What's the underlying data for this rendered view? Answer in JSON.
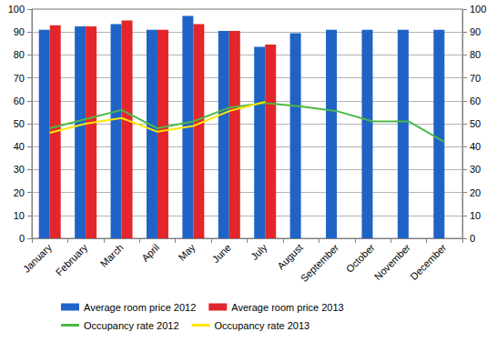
{
  "chart_data": {
    "type": "bar",
    "categories": [
      "January",
      "February",
      "March",
      "April",
      "May",
      "June",
      "July",
      "August",
      "September",
      "October",
      "November",
      "December"
    ],
    "series": [
      {
        "name": "Average room price 2012",
        "type": "bar",
        "color": "#1f63c6",
        "values": [
          91,
          92.5,
          93.5,
          91,
          97,
          90.5,
          83.5,
          89.5,
          91,
          91,
          91,
          91
        ]
      },
      {
        "name": "Average room price 2013",
        "type": "bar",
        "color": "#e3262b",
        "values": [
          93,
          92.5,
          95,
          91,
          93.5,
          90.5,
          84.5,
          null,
          null,
          null,
          null,
          null
        ]
      },
      {
        "name": "Occupancy rate 2012",
        "type": "line",
        "axis": "y2",
        "color": "#4cb848",
        "marker": "none",
        "line_style": "solid",
        "values": [
          48,
          52,
          56,
          48,
          51,
          57,
          59,
          57.5,
          55.5,
          51,
          51,
          42
        ]
      },
      {
        "name": "Occupancy rate 2013",
        "type": "line",
        "axis": "y2",
        "color": "#ffe600",
        "marker": "none",
        "line_style": "solid",
        "values": [
          46,
          50,
          52.5,
          46.5,
          49,
          55.5,
          59.5,
          null,
          null,
          null,
          null,
          null
        ]
      }
    ],
    "ylim": [
      0,
      100
    ],
    "yticks": [
      0,
      10,
      20,
      30,
      40,
      50,
      60,
      70,
      80,
      90,
      100
    ],
    "y2lim": [
      0,
      100
    ],
    "y2ticks": [
      0,
      10,
      20,
      30,
      40,
      50,
      60,
      70,
      80,
      90,
      100
    ],
    "grid": true,
    "legend": "bottom"
  }
}
